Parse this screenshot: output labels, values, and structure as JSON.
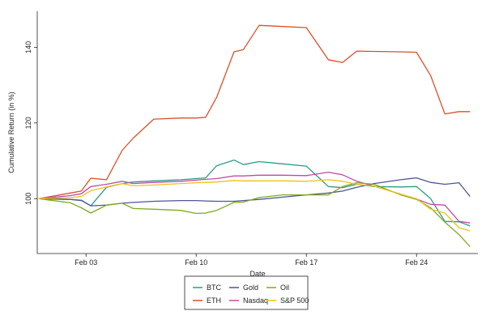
{
  "chart_data": {
    "type": "line",
    "title": "",
    "xlabel": "Date",
    "ylabel": "Cumulative Return (in %)",
    "x_tick_labels": [
      "Feb 03",
      "Feb 10",
      "Feb 17",
      "Feb 24"
    ],
    "x_tick_days": [
      3,
      10,
      17,
      24
    ],
    "xlim": [
      -0.1,
      27.9
    ],
    "y_ticks": [
      100,
      120,
      140
    ],
    "ylim": [
      85.5,
      149.5
    ],
    "grid": false,
    "legend_position": "bottom-center",
    "x": [
      0,
      2,
      2.7,
      3.3,
      4.3,
      5.3,
      6,
      7.3,
      9,
      10,
      10.6,
      11.3,
      12.4,
      13,
      14,
      15.5,
      17,
      18.4,
      19.3,
      20.2,
      21.3,
      23,
      24,
      24.9,
      25.8,
      26.7,
      27.4
    ],
    "series": [
      {
        "name": "BTC",
        "color": "#2e9c83",
        "values": [
          100,
          99.8,
          99.6,
          98.1,
          103.0,
          104.0,
          104.4,
          104.7,
          105.0,
          105.3,
          105.5,
          108.7,
          110.2,
          109.0,
          109.8,
          109.2,
          108.6,
          103.2,
          102.9,
          103.8,
          103.2,
          103.1,
          103.2,
          100.0,
          94.0,
          93.9,
          92.8
        ]
      },
      {
        "name": "ETH",
        "color": "#d9512a",
        "values": [
          100,
          101.5,
          102.0,
          105.4,
          105.0,
          112.8,
          116.0,
          121.0,
          121.3,
          121.3,
          121.5,
          126.8,
          138.8,
          139.4,
          145.8,
          145.5,
          145.2,
          136.7,
          136.0,
          139.0,
          138.9,
          138.8,
          138.7,
          132.5,
          122.4,
          123.0,
          123.0
        ]
      },
      {
        "name": "Gold",
        "color": "#4d5694",
        "values": [
          100,
          99.8,
          99.5,
          98.1,
          98.3,
          98.8,
          99.0,
          99.3,
          99.5,
          99.5,
          99.4,
          99.3,
          99.3,
          99.5,
          99.8,
          100.4,
          101.0,
          101.5,
          102.0,
          103.0,
          104.0,
          105.0,
          105.5,
          104.3,
          103.8,
          104.2,
          100.6
        ]
      },
      {
        "name": "Nasdaq",
        "color": "#c04aa6",
        "values": [
          100,
          100.8,
          101.3,
          103.2,
          103.8,
          104.6,
          104.0,
          104.3,
          104.6,
          104.9,
          105.1,
          105.3,
          106.0,
          106.0,
          106.2,
          106.2,
          106.1,
          107.0,
          106.3,
          104.6,
          103.3,
          101.2,
          99.9,
          98.5,
          98.3,
          94.0,
          93.6
        ]
      },
      {
        "name": "Oil",
        "color": "#7eaa1f",
        "values": [
          100,
          98.9,
          97.6,
          96.2,
          98.3,
          98.8,
          97.4,
          97.2,
          96.9,
          96.1,
          96.2,
          96.9,
          99.0,
          99.1,
          100.3,
          101.0,
          101.0,
          101.0,
          103.2,
          104.2,
          103.8,
          101.0,
          99.8,
          97.6,
          93.8,
          90.5,
          87.3
        ]
      },
      {
        "name": "S&P 500",
        "color": "#eec117",
        "values": [
          100,
          100.3,
          100.6,
          102.1,
          103.1,
          104.0,
          103.4,
          103.6,
          104.0,
          104.2,
          104.3,
          104.4,
          104.8,
          104.7,
          104.7,
          104.7,
          104.6,
          105.0,
          104.6,
          103.8,
          103.3,
          101.2,
          100.0,
          97.2,
          96.2,
          92.3,
          91.5
        ]
      }
    ]
  }
}
